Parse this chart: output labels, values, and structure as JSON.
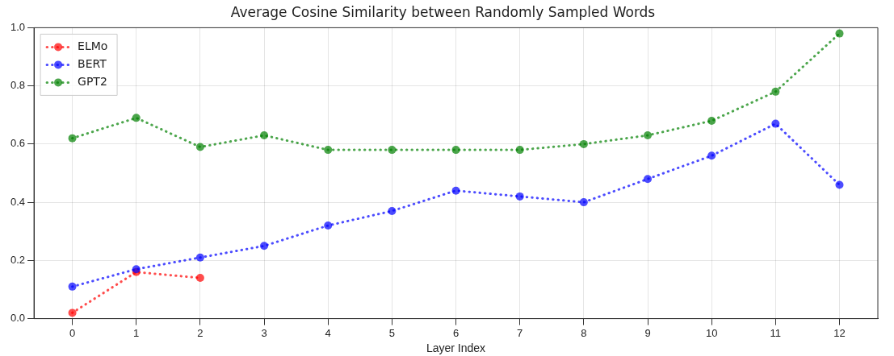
{
  "chart_data": {
    "type": "line",
    "title": "Average Cosine Similarity between Randomly Sampled Words",
    "xlabel": "Layer Index",
    "x": [
      0,
      1,
      2,
      3,
      4,
      5,
      6,
      7,
      8,
      9,
      10,
      11,
      12
    ],
    "series": [
      {
        "name": "ELMo",
        "color": "#ff0000",
        "values": [
          0.02,
          0.16,
          0.14,
          null,
          null,
          null,
          null,
          null,
          null,
          null,
          null,
          null,
          null
        ]
      },
      {
        "name": "BERT",
        "color": "#0000ff",
        "values": [
          0.11,
          0.17,
          0.21,
          0.25,
          0.32,
          0.37,
          0.44,
          0.42,
          0.4,
          0.48,
          0.56,
          0.67,
          0.46
        ]
      },
      {
        "name": "GPT2",
        "color": "#008000",
        "values": [
          0.62,
          0.69,
          0.59,
          0.63,
          0.58,
          0.58,
          0.58,
          0.58,
          0.6,
          0.63,
          0.68,
          0.78,
          0.98
        ]
      }
    ],
    "xlim": [
      -0.6,
      12.6
    ],
    "xticks": [
      0,
      1,
      2,
      3,
      4,
      5,
      6,
      7,
      8,
      9,
      10,
      11,
      12
    ],
    "ylim": [
      0,
      1
    ],
    "yticks": [
      {
        "value": 0,
        "label": "0.0"
      },
      {
        "value": 0.2,
        "label": "0.2"
      },
      {
        "value": 0.4,
        "label": "0.4"
      },
      {
        "value": 0.6,
        "label": "0.6"
      },
      {
        "value": 0.8,
        "label": "0.8"
      },
      {
        "value": 1,
        "label": "1.0"
      }
    ],
    "grid": true,
    "legend": "top left",
    "marker": "circle",
    "line_style": "dotted"
  }
}
